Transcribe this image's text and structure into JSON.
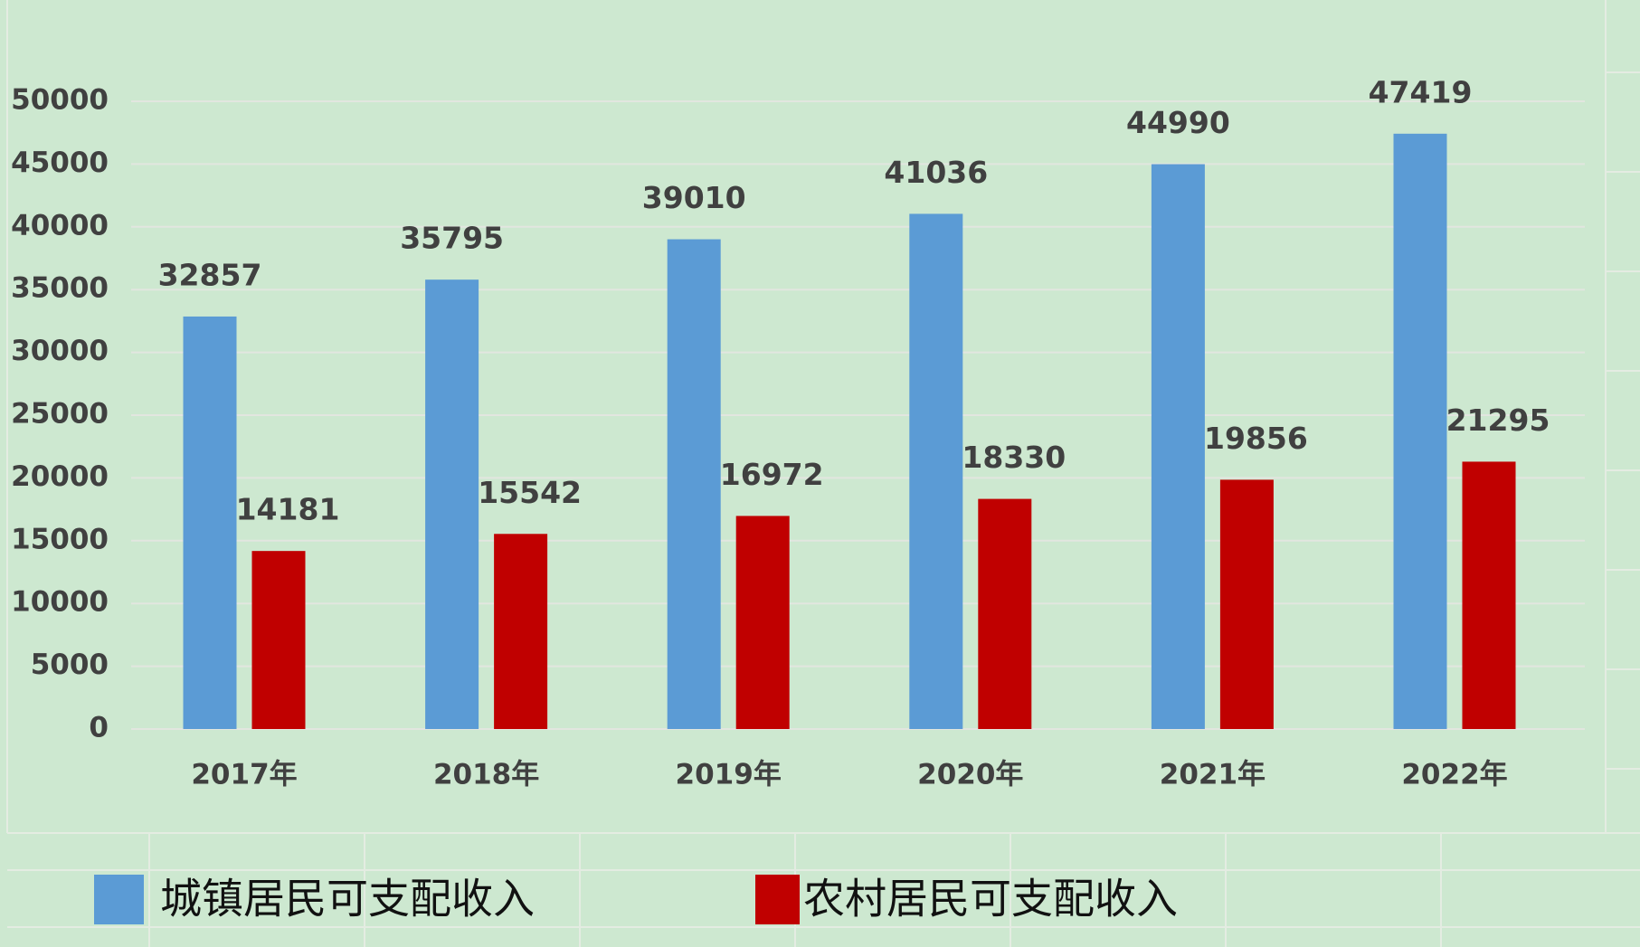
{
  "chart_data": {
    "type": "bar",
    "categories": [
      "2017年",
      "2018年",
      "2019年",
      "2020年",
      "2021年",
      "2022年"
    ],
    "series": [
      {
        "name": "城镇居民可支配收入",
        "color": "#5b9bd5",
        "values": [
          32857,
          35795,
          39010,
          41036,
          44990,
          47419
        ]
      },
      {
        "name": "农村居民可支配收入",
        "color": "#c00000",
        "values": [
          14181,
          15542,
          16972,
          18330,
          19856,
          21295
        ]
      }
    ],
    "ylim": [
      0,
      50000
    ],
    "yticks": [
      0,
      5000,
      10000,
      15000,
      20000,
      25000,
      30000,
      35000,
      40000,
      45000,
      50000
    ],
    "grid": true,
    "legend": "bottom"
  }
}
